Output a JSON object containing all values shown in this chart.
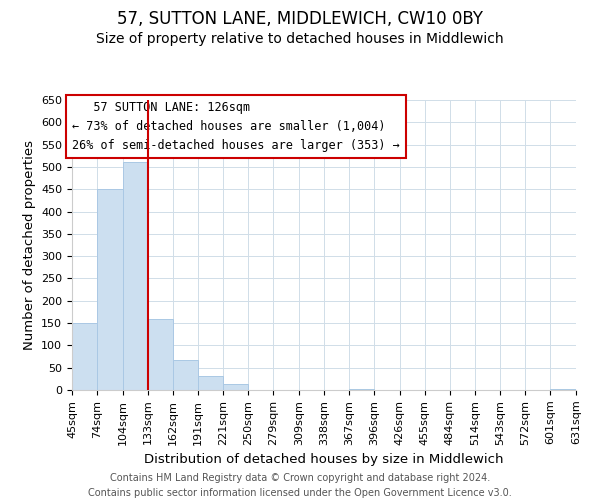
{
  "title": "57, SUTTON LANE, MIDDLEWICH, CW10 0BY",
  "subtitle": "Size of property relative to detached houses in Middlewich",
  "xlabel": "Distribution of detached houses by size in Middlewich",
  "ylabel": "Number of detached properties",
  "footer_line1": "Contains HM Land Registry data © Crown copyright and database right 2024.",
  "footer_line2": "Contains public sector information licensed under the Open Government Licence v3.0.",
  "bar_edges": [
    45,
    74,
    104,
    133,
    162,
    191,
    221,
    250,
    279,
    309,
    338,
    367,
    396,
    426,
    455,
    484,
    514,
    543,
    572,
    601,
    631
  ],
  "bar_heights": [
    150,
    450,
    510,
    160,
    67,
    32,
    13,
    0,
    0,
    0,
    0,
    2,
    0,
    0,
    0,
    0,
    0,
    0,
    0,
    2
  ],
  "bar_color": "#ccdff0",
  "bar_edgecolor": "#aac8e4",
  "vline_x": 133,
  "vline_color": "#cc0000",
  "vline_lw": 1.5,
  "annotation_title": "57 SUTTON LANE: 126sqm",
  "annotation_line1": "← 73% of detached houses are smaller (1,004)",
  "annotation_line2": "26% of semi-detached houses are larger (353) →",
  "ylim": [
    0,
    650
  ],
  "yticks": [
    0,
    50,
    100,
    150,
    200,
    250,
    300,
    350,
    400,
    450,
    500,
    550,
    600,
    650
  ],
  "xtick_labels": [
    "45sqm",
    "74sqm",
    "104sqm",
    "133sqm",
    "162sqm",
    "191sqm",
    "221sqm",
    "250sqm",
    "279sqm",
    "309sqm",
    "338sqm",
    "367sqm",
    "396sqm",
    "426sqm",
    "455sqm",
    "484sqm",
    "514sqm",
    "543sqm",
    "572sqm",
    "601sqm",
    "631sqm"
  ],
  "grid_color": "#d0dde8",
  "bg_color": "#ffffff",
  "title_fontsize": 12,
  "subtitle_fontsize": 10,
  "axis_label_fontsize": 9.5,
  "tick_fontsize": 8,
  "footer_fontsize": 7
}
